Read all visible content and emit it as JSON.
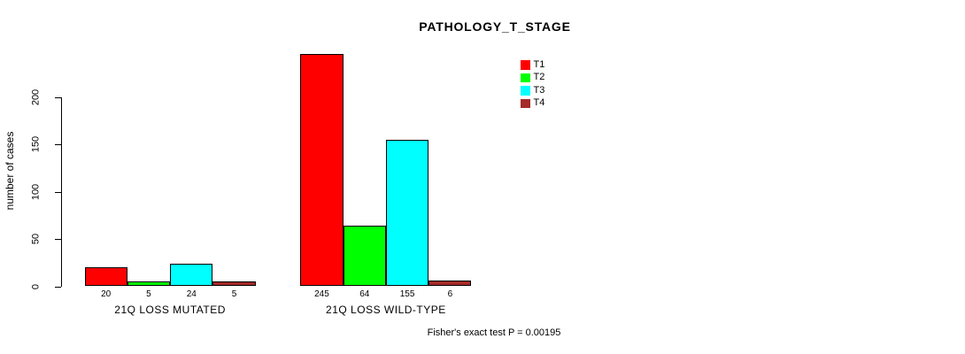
{
  "chart_data": {
    "type": "bar",
    "title": "PATHOLOGY_T_STAGE",
    "ylabel": "number of cases",
    "xlabel": "",
    "yticks": [
      0,
      50,
      100,
      150,
      200
    ],
    "ylim": [
      0,
      245
    ],
    "grid": false,
    "legend_position": "top-right",
    "series": [
      "T1",
      "T2",
      "T3",
      "T4"
    ],
    "colors": [
      "#ff0000",
      "#00ff00",
      "#00ffff",
      "#a52a2a"
    ],
    "categories": [
      "21Q LOSS MUTATED",
      "21Q LOSS WILD-TYPE"
    ],
    "groups": [
      {
        "label": "21Q LOSS MUTATED",
        "values": [
          20,
          5,
          24,
          5
        ]
      },
      {
        "label": "21Q LOSS WILD-TYPE",
        "values": [
          245,
          64,
          155,
          6
        ]
      }
    ],
    "footer": "Fisher's exact test P = 0.00195"
  }
}
